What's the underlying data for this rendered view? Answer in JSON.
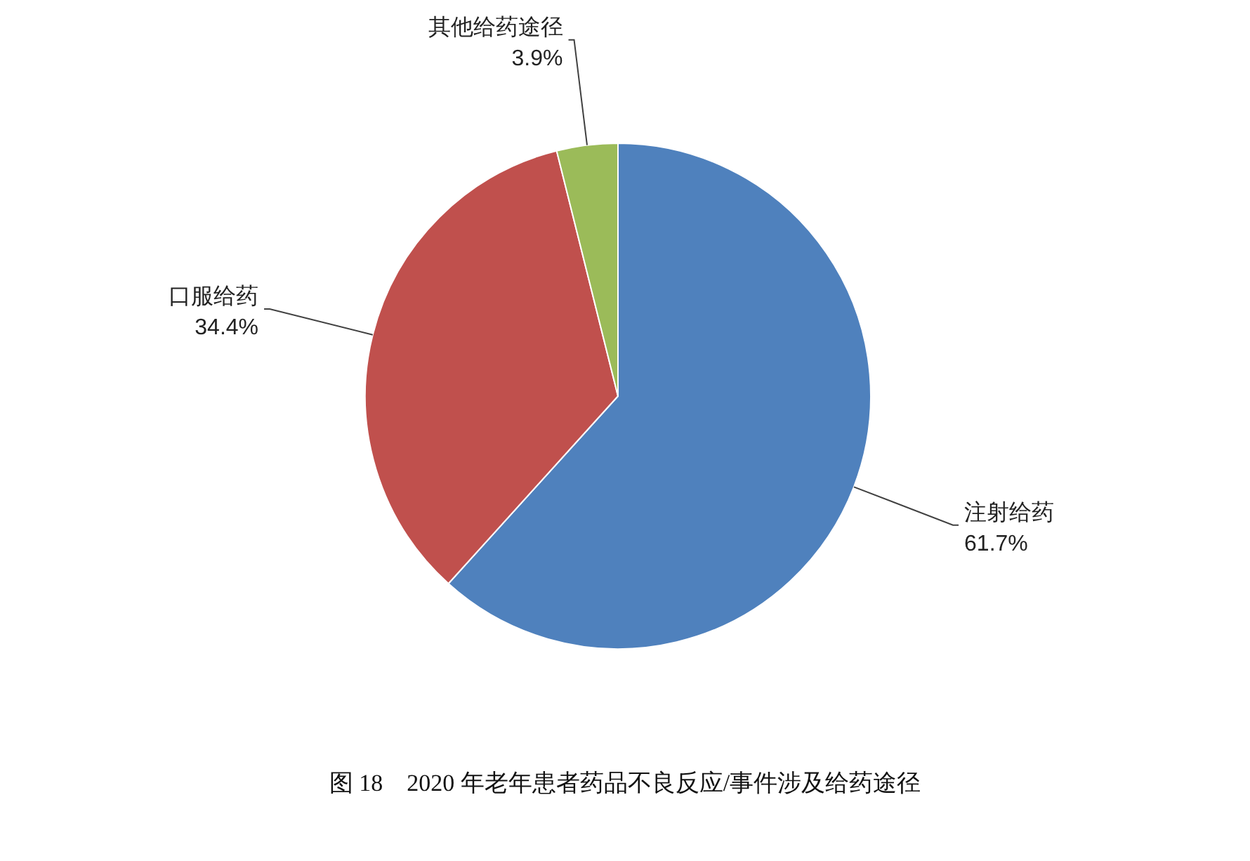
{
  "chart_data": {
    "type": "pie",
    "title": "图 18　2020 年老年患者药品不良反应/事件涉及给药途径",
    "categories": [
      "注射给药",
      "口服给药",
      "其他给药途径"
    ],
    "values": [
      61.7,
      34.4,
      3.9
    ],
    "colors": [
      "#4f81bd",
      "#c0504d",
      "#9bbb59"
    ],
    "value_labels": [
      "61.7%",
      "34.4%",
      "3.9%"
    ]
  }
}
